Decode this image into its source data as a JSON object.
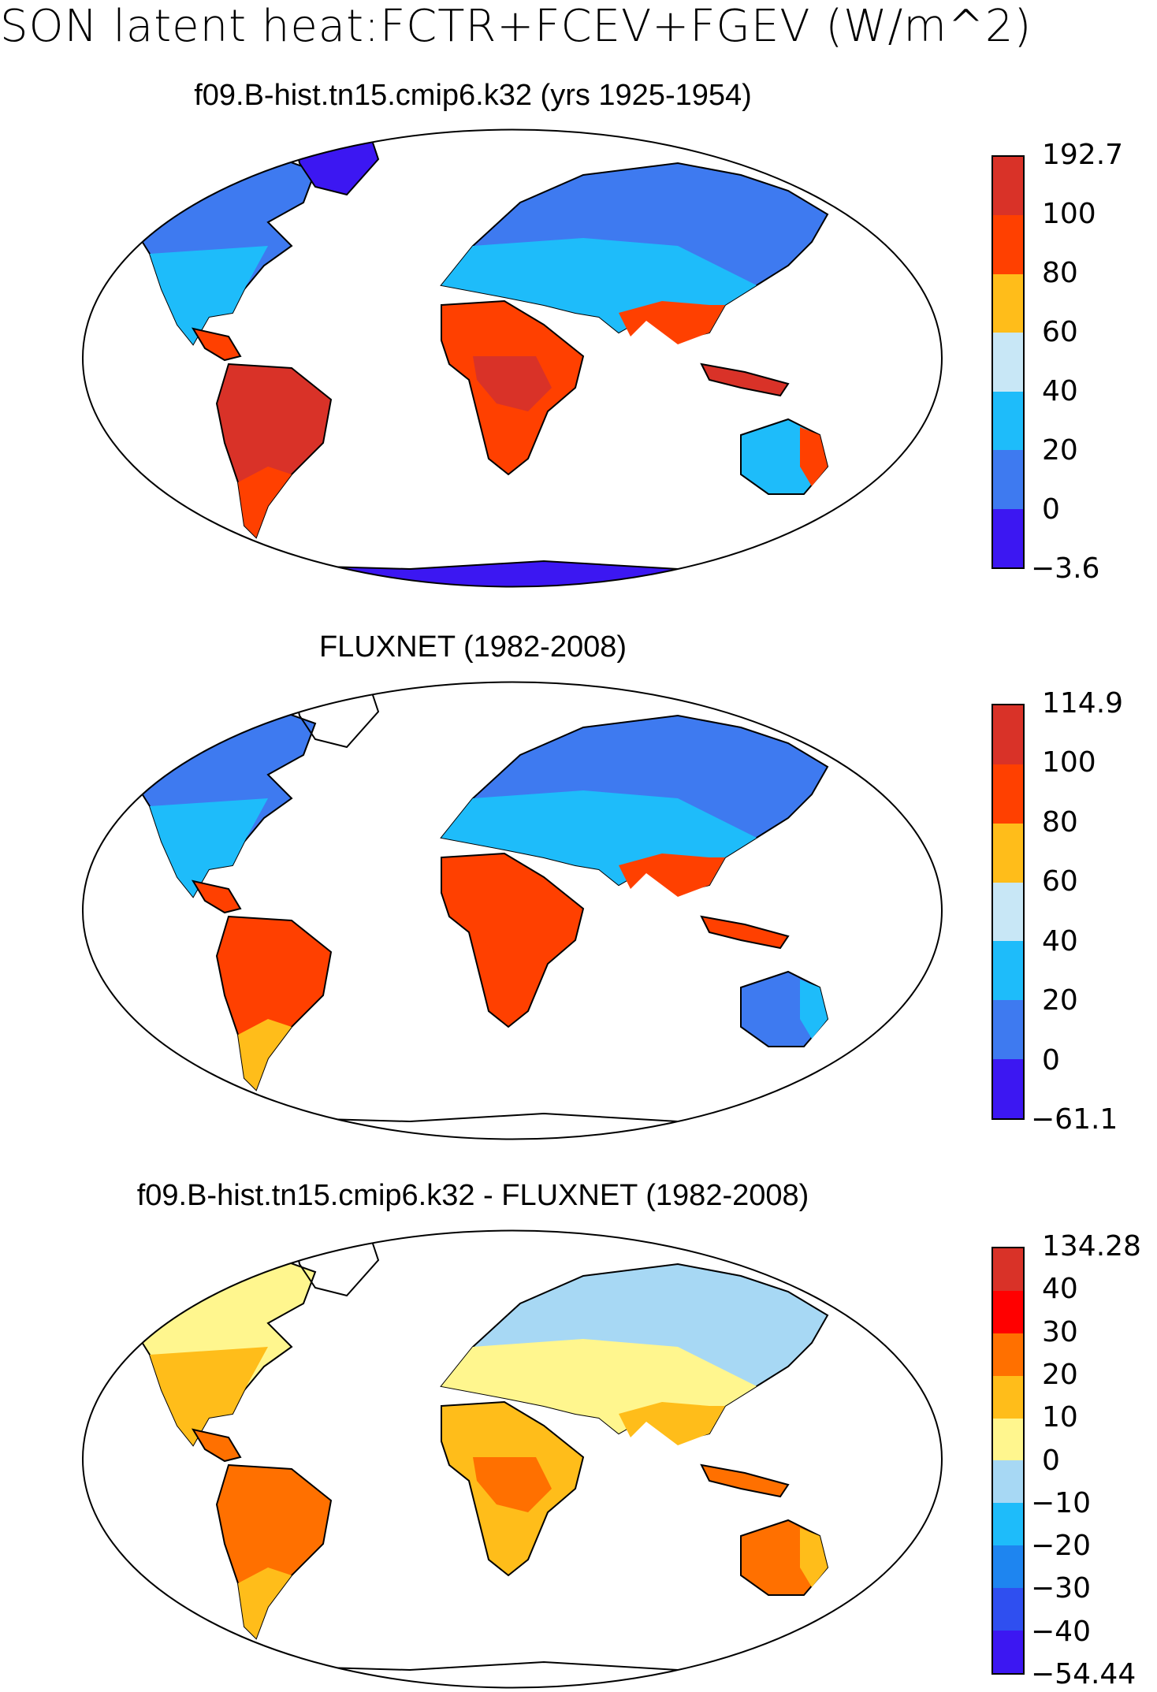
{
  "figure_title": "SON latent heat:FCTR+FCEV+FGEV (W/m^2)",
  "panels": [
    {
      "title": "f09.B-hist.tn15.cmip6.k32 (yrs 1925-1954)",
      "colorbar_labels": [
        "192.7",
        "100",
        "80",
        "60",
        "40",
        "20",
        "0",
        "−3.6"
      ],
      "colorbar_colors": [
        "#d93228",
        "#ff4000",
        "#ffbd1a",
        "#c8e7f6",
        "#1ebcfa",
        "#3e7af0",
        "#3c17f2"
      ]
    },
    {
      "title": "FLUXNET (1982-2008)",
      "colorbar_labels": [
        "114.9",
        "100",
        "80",
        "60",
        "40",
        "20",
        "0",
        "−61.1"
      ],
      "colorbar_colors": [
        "#d93228",
        "#ff4000",
        "#ffbd1a",
        "#c8e7f6",
        "#1ebcfa",
        "#3e7af0",
        "#3c17f2"
      ]
    },
    {
      "title": "f09.B-hist.tn15.cmip6.k32 - FLUXNET (1982-2008)",
      "colorbar_labels": [
        "134.28",
        "40",
        "30",
        "20",
        "10",
        "0",
        "−10",
        "−20",
        "−30",
        "−40",
        "−54.44"
      ],
      "colorbar_colors": [
        "#d93228",
        "#ff0000",
        "#ff7000",
        "#ffbd1a",
        "#fff68e",
        "#a7d8f4",
        "#1ebcfa",
        "#1e85f0",
        "#2f4ff0",
        "#3c17f2"
      ]
    }
  ]
}
